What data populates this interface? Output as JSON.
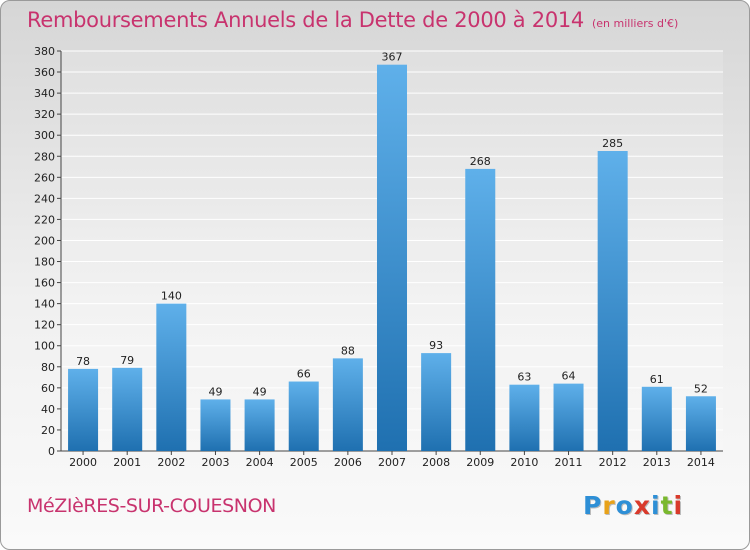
{
  "header": {
    "title": "Remboursements Annuels de la Dette de 2000 à 2014",
    "unit": "(en milliers d'€)"
  },
  "footer": {
    "commune": "MéZIèRES-SUR-COUESNON",
    "brand": "Proxiti",
    "brand_letters": [
      "P",
      "r",
      "o",
      "x",
      "i",
      "t",
      "i"
    ],
    "brand_colors": [
      "#2e8fd6",
      "#e8a21a",
      "#2e8fd6",
      "#d93a2b",
      "#2e8fd6",
      "#7ab82e",
      "#d93a2b"
    ]
  },
  "colors": {
    "bar_light": "#5fb0ea",
    "bar_dark": "#1f70b0",
    "grid": "#ffffff",
    "title": "#c8336e"
  },
  "chart_data": {
    "type": "bar",
    "title": "Remboursements Annuels de la Dette de 2000 à 2014",
    "ylabel": "en milliers d'€",
    "xlabel": "",
    "categories": [
      "2000",
      "2001",
      "2002",
      "2003",
      "2004",
      "2005",
      "2006",
      "2007",
      "2008",
      "2009",
      "2010",
      "2011",
      "2012",
      "2013",
      "2014"
    ],
    "values": [
      78,
      79,
      140,
      49,
      49,
      66,
      88,
      367,
      93,
      268,
      63,
      64,
      285,
      61,
      52
    ],
    "ylim": [
      0,
      380
    ],
    "ytick_step": 20,
    "grid": true
  }
}
